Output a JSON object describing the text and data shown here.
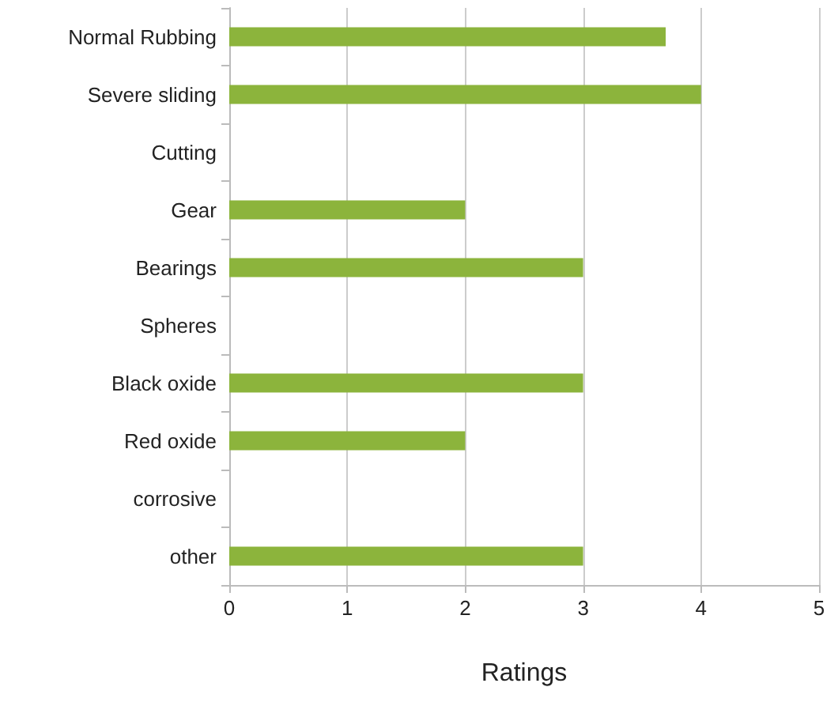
{
  "chart_data": {
    "type": "bar",
    "orientation": "horizontal",
    "xlabel": "Ratings",
    "categories": [
      "Normal Rubbing",
      "Severe sliding",
      "Cutting",
      "Gear",
      "Bearings",
      "Spheres",
      "Black oxide",
      "Red oxide",
      "corrosive",
      "other"
    ],
    "values": [
      3.7,
      4,
      0,
      2,
      3,
      0,
      3,
      2,
      0,
      3
    ],
    "color": "#8cb43c",
    "xlim": [
      0,
      5
    ],
    "xticks": [
      0,
      1,
      2,
      3,
      4,
      5
    ],
    "grid": "x"
  }
}
